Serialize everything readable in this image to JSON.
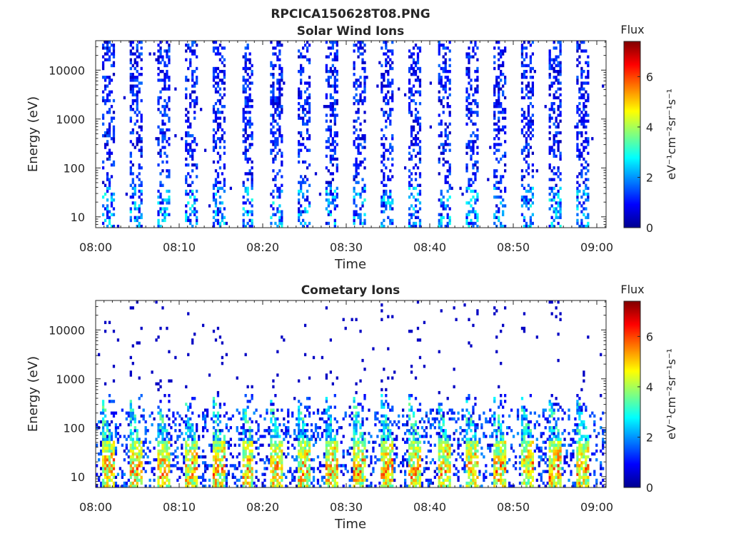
{
  "figure": {
    "title": "RPCICA150628T08.PNG"
  },
  "chart_data": [
    {
      "type": "heatmap",
      "title": "Solar Wind Ions",
      "xlabel": "Time",
      "ylabel": "Energy (eV)",
      "x_ticks": [
        "08:00",
        "08:10",
        "08:20",
        "08:30",
        "08:40",
        "08:50",
        "09:00"
      ],
      "x_range": [
        "08:00",
        "09:00"
      ],
      "y_scale": "log",
      "y_ticks": [
        10,
        100,
        1000,
        10000
      ],
      "y_tick_labels": [
        "10",
        "100",
        "1000",
        "10000"
      ],
      "y_range": [
        6,
        40000
      ],
      "colorbar": {
        "label": "Flux",
        "unit_label": "eV⁻¹cm⁻²sr⁻¹s⁻¹",
        "range": [
          0,
          7.4
        ],
        "ticks": [
          0,
          2,
          4,
          6
        ],
        "colormap": "jet"
      },
      "features": {
        "sweep_count": 18,
        "sweep_start_minute": 0.7,
        "sweep_period_minutes": 3.35,
        "description": "Sparse low-to-moderate flux (0-3) across 6 eV - 20 keV in periodic vertical bands"
      }
    },
    {
      "type": "heatmap",
      "title": "Cometary Ions",
      "xlabel": "Time",
      "ylabel": "Energy (eV)",
      "x_ticks": [
        "08:00",
        "08:10",
        "08:20",
        "08:30",
        "08:40",
        "08:50",
        "09:00"
      ],
      "x_range": [
        "08:00",
        "09:00"
      ],
      "y_scale": "log",
      "y_ticks": [
        10,
        100,
        1000,
        10000
      ],
      "y_tick_labels": [
        "10",
        "100",
        "1000",
        "10000"
      ],
      "y_range": [
        6,
        40000
      ],
      "colorbar": {
        "label": "Flux",
        "unit_label": "eV⁻¹cm⁻²sr⁻¹s⁻¹",
        "range": [
          0,
          7.4
        ],
        "ticks": [
          0,
          2,
          4,
          6
        ],
        "colormap": "jet"
      },
      "features": {
        "burst_count": 18,
        "burst_start_minute": 0.7,
        "burst_period_minutes": 3.35,
        "peak_flux": 6.5,
        "description": "Intense flux (4-6.5) concentrated below ~50 eV, dispersed tails up to ~500 eV, sparse points above"
      }
    }
  ]
}
